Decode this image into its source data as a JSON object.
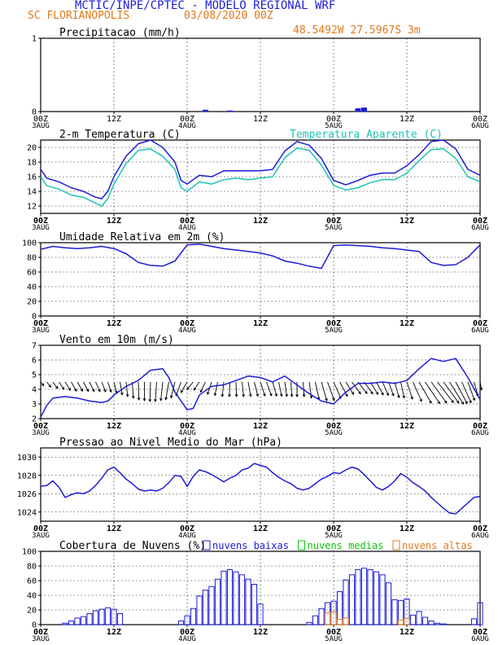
{
  "header": {
    "title": "MCTIC/INPE/CPTEC - MODELO REGIONAL WRF",
    "location": "SC FLORIANOPOLIS",
    "date": "03/08/2020 00Z",
    "coords": "48.5492W 27.5967S 3m"
  },
  "colors": {
    "blue": "#1c1cd6",
    "cyan": "#1ec4b8",
    "green": "#12c012",
    "orange": "#e07a1e"
  },
  "time_ticks": [
    {
      "hour": 0,
      "label": "00Z",
      "day": "3AUG"
    },
    {
      "hour": 12,
      "label": "12Z",
      "day": ""
    },
    {
      "hour": 24,
      "label": "00Z",
      "day": "4AUG"
    },
    {
      "hour": 36,
      "label": "12Z",
      "day": ""
    },
    {
      "hour": 48,
      "label": "00Z",
      "day": "5AUG"
    },
    {
      "hour": 60,
      "label": "12Z",
      "day": ""
    },
    {
      "hour": 72,
      "label": "00Z",
      "day": "6AUG"
    }
  ],
  "chart_data": [
    {
      "id": "precip",
      "type": "bar",
      "title": "Precipitacao (mm/h)",
      "ylim": [
        0,
        1
      ],
      "yticks": [
        0,
        1
      ],
      "bold_ticks": false,
      "grid": true,
      "x": [
        27,
        31,
        52,
        53
      ],
      "values": [
        0.02,
        0.01,
        0.04,
        0.05
      ]
    },
    {
      "id": "temperature",
      "type": "line",
      "title": "2-m Temperatura (C)",
      "right_title": "Temperatura Aparente (C)",
      "ylim": [
        11,
        21
      ],
      "yticks": [
        12,
        14,
        16,
        18,
        20
      ],
      "bold_ticks": true,
      "grid": true,
      "series": [
        {
          "name": "2-m Temperatura (C)",
          "color": "blue",
          "x": [
            0,
            1,
            3,
            5,
            7,
            9,
            10,
            11,
            12,
            14,
            16,
            18,
            20,
            22,
            23,
            24,
            26,
            28,
            30,
            32,
            34,
            36,
            38,
            40,
            42,
            44,
            46,
            48,
            50,
            52,
            54,
            56,
            58,
            60,
            62,
            64,
            66,
            68,
            70,
            72
          ],
          "y": [
            17,
            15.8,
            15.3,
            14.5,
            14,
            13.2,
            13,
            14,
            16,
            18.8,
            20.5,
            21,
            20,
            18,
            15.5,
            15,
            16.2,
            16,
            16.8,
            16.8,
            16.8,
            16.8,
            17,
            19.5,
            20.8,
            20.3,
            18.5,
            15.5,
            14.9,
            15.5,
            16.2,
            16.5,
            16.5,
            17.5,
            19,
            20.8,
            21,
            19.8,
            17,
            16.2
          ]
        },
        {
          "name": "Temperatura Aparente (C)",
          "color": "cyan",
          "x": [
            0,
            1,
            3,
            5,
            7,
            9,
            10,
            11,
            12,
            14,
            16,
            18,
            20,
            22,
            23,
            24,
            26,
            28,
            30,
            32,
            34,
            36,
            38,
            40,
            42,
            44,
            46,
            48,
            50,
            52,
            54,
            56,
            58,
            60,
            62,
            64,
            66,
            68,
            70,
            72
          ],
          "y": [
            16,
            14.8,
            14.3,
            13.5,
            13.2,
            12.4,
            12,
            13,
            15,
            17.8,
            19.6,
            19.8,
            18.8,
            17,
            14.5,
            14,
            15.3,
            15,
            15.6,
            15.8,
            15.6,
            15.8,
            16,
            18.6,
            19.9,
            19.6,
            17.6,
            14.8,
            14.2,
            14.5,
            15.2,
            15.6,
            15.6,
            16.5,
            18.2,
            19.7,
            19.8,
            18.5,
            16,
            15.3
          ]
        }
      ]
    },
    {
      "id": "humidity",
      "type": "line",
      "title": "Umidade Relativa em 2m (%)",
      "ylim": [
        0,
        100
      ],
      "yticks": [
        0,
        20,
        40,
        60,
        80,
        100
      ],
      "bold_ticks": true,
      "grid": true,
      "series": [
        {
          "name": "Umidade Relativa em 2m (%)",
          "color": "blue",
          "x": [
            0,
            2,
            4,
            6,
            8,
            10,
            12,
            14,
            16,
            18,
            20,
            22,
            24,
            26,
            28,
            30,
            32,
            34,
            36,
            38,
            40,
            42,
            44,
            46,
            48,
            50,
            52,
            54,
            56,
            58,
            60,
            62,
            64,
            66,
            68,
            70,
            72
          ],
          "y": [
            91,
            95,
            93,
            92,
            93,
            95,
            92,
            85,
            73,
            69,
            68,
            75,
            97,
            98,
            95,
            92,
            90,
            88,
            86,
            82,
            75,
            72,
            68,
            65,
            96,
            97,
            96,
            95,
            93,
            92,
            90,
            88,
            73,
            69,
            70,
            80,
            97
          ]
        }
      ]
    },
    {
      "id": "wind",
      "type": "line",
      "title": "Vento em 10m (m/s)",
      "ylim": [
        2,
        7
      ],
      "yticks": [
        2,
        3,
        4,
        5,
        6,
        7
      ],
      "bold_ticks": true,
      "grid": true,
      "series": [
        {
          "name": "Vento em 10m (m/s)",
          "color": "blue",
          "x": [
            0,
            1,
            2,
            4,
            6,
            8,
            10,
            11,
            12,
            14,
            16,
            18,
            20,
            21,
            22,
            24,
            25,
            26,
            28,
            30,
            32,
            34,
            36,
            38,
            40,
            42,
            44,
            46,
            48,
            50,
            52,
            54,
            56,
            58,
            60,
            62,
            64,
            66,
            68,
            70,
            72
          ],
          "y": [
            2.1,
            2.9,
            3.4,
            3.5,
            3.4,
            3.2,
            3.1,
            3.2,
            3.6,
            4.2,
            4.6,
            5.3,
            5.4,
            4.8,
            3.8,
            2.6,
            2.7,
            3.6,
            4.2,
            4.3,
            4.6,
            4.9,
            4.8,
            4.5,
            4.9,
            4.3,
            3.7,
            3.2,
            3,
            3.8,
            4.4,
            4.4,
            4.5,
            4.4,
            4.6,
            5.4,
            6.1,
            5.9,
            6.1,
            4.8,
            3.3
          ]
        }
      ],
      "barbs": {
        "x": [
          0,
          1,
          2,
          3,
          4,
          5,
          6,
          7,
          8,
          9,
          10,
          11,
          12,
          13,
          14,
          15,
          16,
          17,
          18,
          19,
          20,
          21,
          22,
          23,
          24,
          25,
          26,
          27,
          28,
          29,
          30,
          31,
          32,
          33,
          34,
          35,
          36,
          37,
          38,
          39,
          40,
          41,
          42,
          43,
          44,
          45,
          46,
          47,
          48,
          49,
          50,
          51,
          52,
          53,
          54,
          55,
          56,
          57,
          58,
          59,
          60,
          61,
          62,
          63,
          64,
          65,
          66,
          67,
          68,
          69,
          70,
          71,
          72
        ],
        "dir": [
          -40,
          -38,
          -36,
          -34,
          -32,
          -30,
          -30,
          -28,
          -26,
          -24,
          -22,
          -18,
          -14,
          -10,
          -6,
          -4,
          -2,
          0,
          2,
          4,
          6,
          10,
          14,
          20,
          30,
          40,
          34,
          26,
          18,
          12,
          6,
          2,
          -2,
          -6,
          -10,
          -14,
          -18,
          -20,
          -16,
          -12,
          -8,
          -4,
          0,
          -4,
          -8,
          -12,
          -16,
          -20,
          -24,
          -28,
          -32,
          -36,
          -38,
          -36,
          -32,
          -28,
          -24,
          -20,
          -16,
          -12,
          -18,
          -24,
          -30,
          -34,
          -36,
          -38,
          -36,
          -32,
          -28,
          -24,
          -20,
          -16,
          -10
        ],
        "len": [
          6,
          8,
          10,
          11,
          12,
          13,
          13,
          13,
          13,
          13,
          13,
          13,
          14,
          16,
          18,
          20,
          22,
          23,
          24,
          24,
          23,
          22,
          20,
          18,
          15,
          12,
          12,
          14,
          16,
          17,
          18,
          18,
          18,
          18,
          18,
          18,
          18,
          18,
          18,
          18,
          18,
          18,
          18,
          18,
          20,
          22,
          24,
          24,
          22,
          20,
          18,
          18,
          18,
          18,
          18,
          18,
          18,
          18,
          20,
          20,
          22,
          26,
          30,
          32,
          32,
          32,
          32,
          32,
          30,
          28,
          24,
          18,
          10
        ]
      }
    },
    {
      "id": "pressure",
      "type": "line",
      "title": "Pressao ao Nivel Medio do Mar (hPa)",
      "ylim": [
        1023,
        1031
      ],
      "yticks": [
        1024,
        1026,
        1028,
        1030
      ],
      "bold_ticks": true,
      "grid": true,
      "series": [
        {
          "name": "Pressao ao Nivel Medio do Mar (hPa)",
          "color": "blue",
          "x": [
            0,
            1,
            2,
            3,
            4,
            5,
            6,
            7,
            8,
            9,
            10,
            11,
            12,
            13,
            14,
            15,
            16,
            17,
            18,
            19,
            20,
            21,
            22,
            23,
            24,
            25,
            26,
            27,
            28,
            29,
            30,
            31,
            32,
            33,
            34,
            35,
            36,
            37,
            38,
            39,
            40,
            41,
            42,
            43,
            44,
            45,
            46,
            47,
            48,
            49,
            50,
            51,
            52,
            53,
            54,
            55,
            56,
            57,
            58,
            59,
            60,
            61,
            62,
            63,
            64,
            65,
            66,
            67,
            68,
            69,
            70,
            71,
            72
          ],
          "y": [
            1026.8,
            1026.9,
            1027.4,
            1026.7,
            1025.6,
            1025.9,
            1026.1,
            1026,
            1026.3,
            1026.9,
            1027.7,
            1028.6,
            1028.9,
            1028.3,
            1027.6,
            1027.1,
            1026.5,
            1026.3,
            1026.4,
            1026.3,
            1026.6,
            1027.2,
            1028,
            1027.9,
            1026.8,
            1027.9,
            1028.6,
            1028.4,
            1028.1,
            1027.7,
            1027.3,
            1027.7,
            1028,
            1028.6,
            1028.8,
            1029.3,
            1029.1,
            1028.9,
            1028.3,
            1027.8,
            1027.4,
            1027.1,
            1026.6,
            1026.4,
            1026.6,
            1027.1,
            1027.6,
            1027.9,
            1028.3,
            1028.2,
            1028.6,
            1028.9,
            1028.7,
            1028.1,
            1027.4,
            1026.7,
            1026.4,
            1026.8,
            1027.4,
            1028.2,
            1027.8,
            1027.2,
            1026.8,
            1026.3,
            1025.6,
            1025,
            1024.4,
            1023.9,
            1023.8,
            1024.4,
            1025,
            1025.6,
            1025.7
          ]
        }
      ]
    },
    {
      "id": "clouds",
      "type": "bar",
      "title": "Cobertura de Nuvens (%)",
      "ylim": [
        0,
        100
      ],
      "yticks": [
        0,
        20,
        40,
        60,
        80,
        100
      ],
      "bold_ticks": true,
      "grid": true,
      "legend": [
        {
          "label": "nuvens baixas",
          "color": "blue"
        },
        {
          "label": "nuvens medias",
          "color": "green"
        },
        {
          "label": "nuvens altas",
          "color": "orange"
        }
      ],
      "series": [
        {
          "name": "nuvens baixas",
          "color": "blue",
          "x": [
            4,
            5,
            6,
            7,
            8,
            9,
            10,
            11,
            12,
            13,
            23,
            24,
            25,
            26,
            27,
            28,
            29,
            30,
            31,
            32,
            33,
            34,
            35,
            36,
            44,
            45,
            46,
            47,
            48,
            49,
            50,
            51,
            52,
            53,
            54,
            55,
            56,
            57,
            58,
            59,
            60,
            61,
            62,
            63,
            64,
            65,
            66,
            71,
            72
          ],
          "values": [
            2,
            5,
            9,
            11,
            15,
            19,
            21,
            23,
            21,
            15,
            5,
            12,
            22,
            39,
            47,
            52,
            62,
            73,
            75,
            72,
            68,
            62,
            55,
            28,
            3,
            12,
            22,
            30,
            32,
            45,
            61,
            68,
            75,
            77,
            75,
            72,
            68,
            57,
            34,
            33,
            35,
            13,
            18,
            10,
            5,
            2,
            1,
            8,
            30
          ]
        },
        {
          "name": "nuvens medias",
          "color": "green",
          "x": [],
          "values": []
        },
        {
          "name": "nuvens altas",
          "color": "orange",
          "x": [
            47,
            48,
            49,
            50,
            59,
            60
          ],
          "values": [
            16,
            17,
            7,
            9,
            6,
            8
          ]
        }
      ]
    }
  ]
}
